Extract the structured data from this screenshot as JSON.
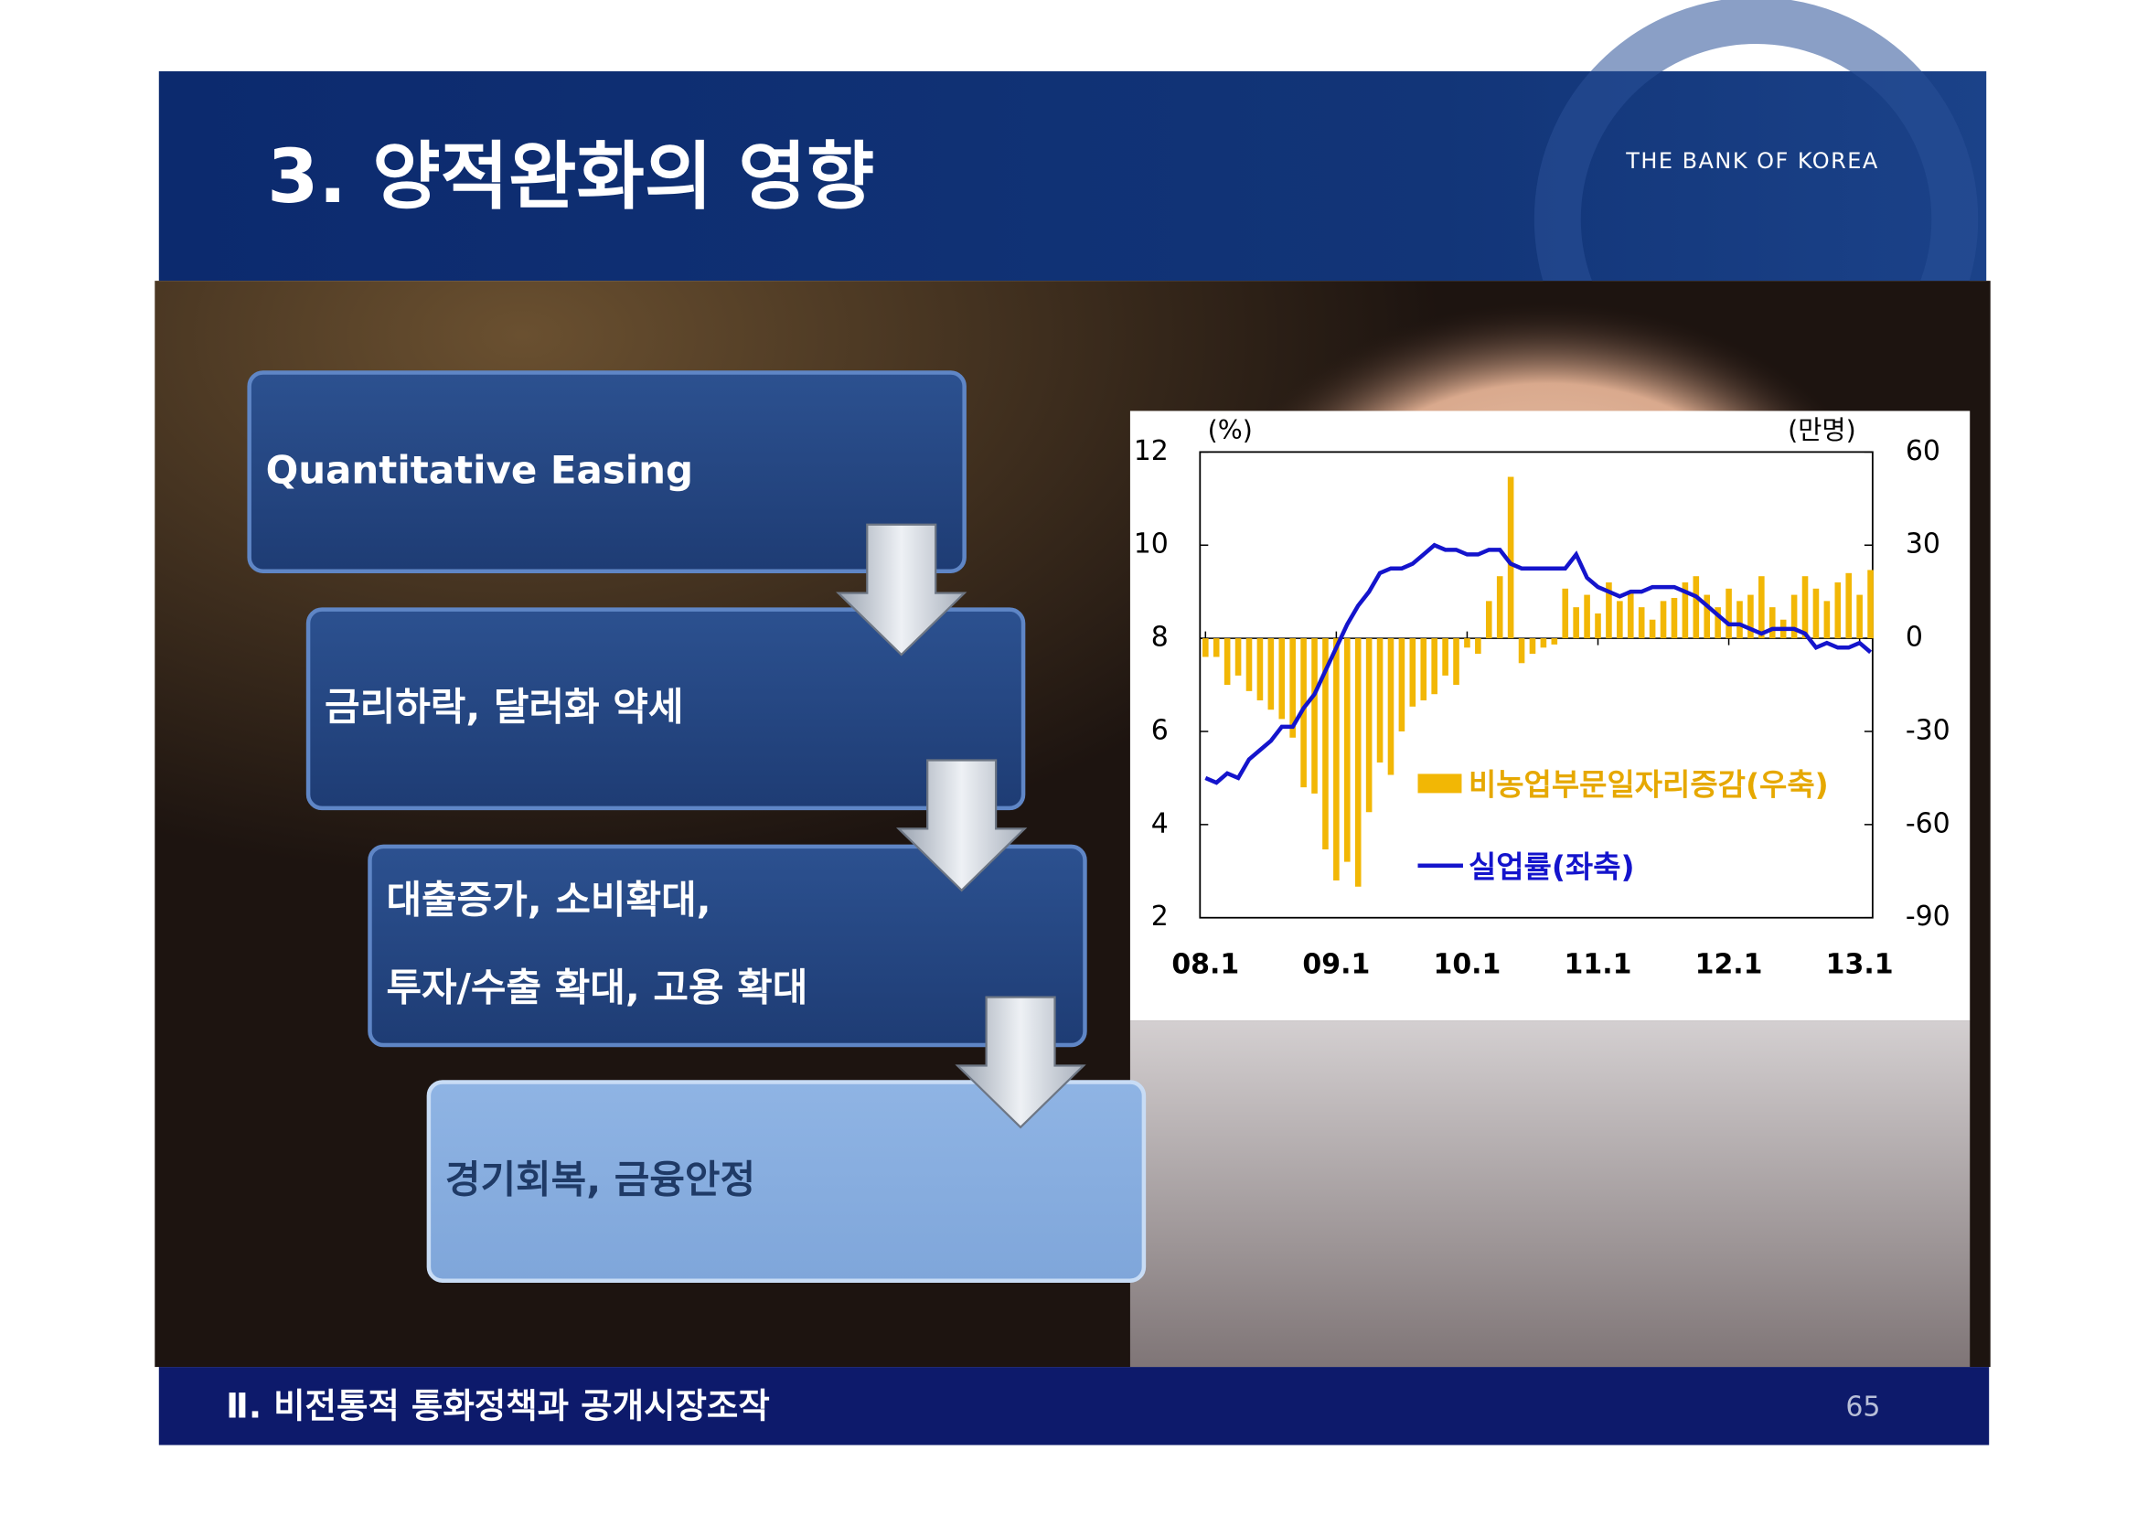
{
  "header": {
    "title": "3. 양적완화의 영향",
    "logo": "THE BANK OF KOREA"
  },
  "flow": {
    "steps": [
      {
        "lines": [
          "Quantitative Easing"
        ]
      },
      {
        "lines": [
          "금리하락, 달러화 약세"
        ]
      },
      {
        "lines": [
          "대출증가, 소비확대,",
          "투자/수출 확대, 고용 확대"
        ]
      },
      {
        "lines": [
          "경기회복, 금융안정"
        ]
      }
    ]
  },
  "chart_data": {
    "type": "combo",
    "y_label": "(%)",
    "y2_label": "(만명)",
    "categories": [
      "08.1",
      null,
      null,
      null,
      null,
      null,
      null,
      null,
      null,
      null,
      null,
      null,
      "09.1",
      null,
      null,
      null,
      null,
      null,
      null,
      null,
      null,
      null,
      null,
      null,
      "10.1",
      null,
      null,
      null,
      null,
      null,
      null,
      null,
      null,
      null,
      null,
      null,
      "11.1",
      null,
      null,
      null,
      null,
      null,
      null,
      null,
      null,
      null,
      null,
      null,
      "12.1",
      null,
      null,
      null,
      null,
      null,
      null,
      null,
      null,
      null,
      null,
      null,
      "13.1",
      null
    ],
    "ylim": [
      2,
      12
    ],
    "yticks": [
      2,
      4,
      6,
      8,
      10,
      12
    ],
    "y2lim": [
      -90,
      60
    ],
    "y2ticks": [
      -90,
      -60,
      -30,
      0,
      30,
      60
    ],
    "series": [
      {
        "name": "비농업부문일자리증감(우축)",
        "color": "#f2b705",
        "type": "bar",
        "axis": "y2",
        "values": [
          -6,
          -6,
          -15,
          -12,
          -17,
          -20,
          -23,
          -26,
          -32,
          -48,
          -50,
          -68,
          -78,
          -72,
          -80,
          -56,
          -40,
          -44,
          -30,
          -22,
          -20,
          -18,
          -12,
          -15,
          -3,
          -5,
          12,
          20,
          52,
          -8,
          -5,
          -3,
          -2,
          16,
          10,
          14,
          8,
          18,
          12,
          15,
          10,
          6,
          12,
          13,
          18,
          20,
          14,
          10,
          16,
          12,
          14,
          20,
          10,
          6,
          14,
          20,
          16,
          12,
          18,
          21,
          14,
          22
        ]
      },
      {
        "name": "실업률(좌축)",
        "color": "#1414cc",
        "type": "line",
        "values": [
          5.0,
          4.9,
          5.1,
          5.0,
          5.4,
          5.6,
          5.8,
          6.1,
          6.1,
          6.5,
          6.8,
          7.3,
          7.8,
          8.3,
          8.7,
          9.0,
          9.4,
          9.5,
          9.5,
          9.6,
          9.8,
          10.0,
          9.9,
          9.9,
          9.8,
          9.8,
          9.9,
          9.9,
          9.6,
          9.5,
          9.5,
          9.5,
          9.5,
          9.5,
          9.8,
          9.3,
          9.1,
          9.0,
          8.9,
          9.0,
          9.0,
          9.1,
          9.1,
          9.1,
          9.0,
          8.9,
          8.7,
          8.5,
          8.3,
          8.3,
          8.2,
          8.1,
          8.2,
          8.2,
          8.2,
          8.1,
          7.8,
          7.9,
          7.8,
          7.8,
          7.9,
          7.7
        ]
      }
    ]
  },
  "footer": {
    "section": "Ⅱ. 비전통적 통화정책과 공개시장조작",
    "page": "65"
  }
}
